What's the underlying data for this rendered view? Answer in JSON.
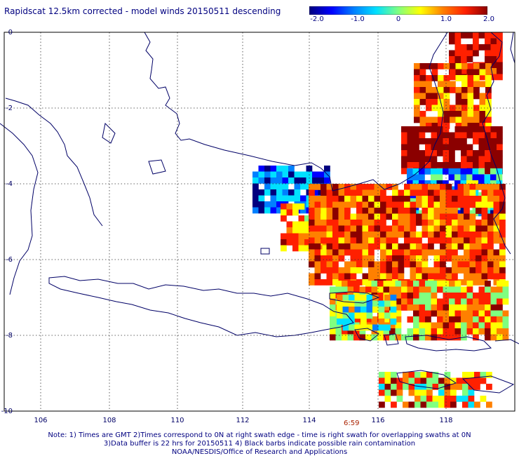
{
  "header": {
    "title": "Rapidscat 12.5km corrected - model winds 20150511 descending"
  },
  "legend": {
    "labels": [
      "-2.0",
      "-1.0",
      "0",
      "1.0",
      "2.0"
    ],
    "stops": [
      "#00007f",
      "#0000ff",
      "#0080ff",
      "#00e0ff",
      "#80ff80",
      "#ffff00",
      "#ff8000",
      "#ff2000",
      "#8b0000"
    ]
  },
  "map": {
    "lon_labels": [
      "106",
      "108",
      "110",
      "112",
      "114",
      "116",
      "118"
    ],
    "lat_labels": [
      "0",
      "-2",
      "-4",
      "-6",
      "-8",
      "-10"
    ],
    "coast_color": "#000066",
    "grid_color": "#222222"
  },
  "footer": {
    "time_label": "6:59",
    "note_line1": "Note: 1) Times are GMT 2)Times correspond to 0N at right swath edge - time is right swath for overlapping swaths at 0N",
    "note_line2": "3)Data buffer is 22 hrs for 20150511 4) Black barbs indicate possible rain contamination",
    "note_line3": "NOAA/NESDIS/Office of Research and Applications"
  }
}
